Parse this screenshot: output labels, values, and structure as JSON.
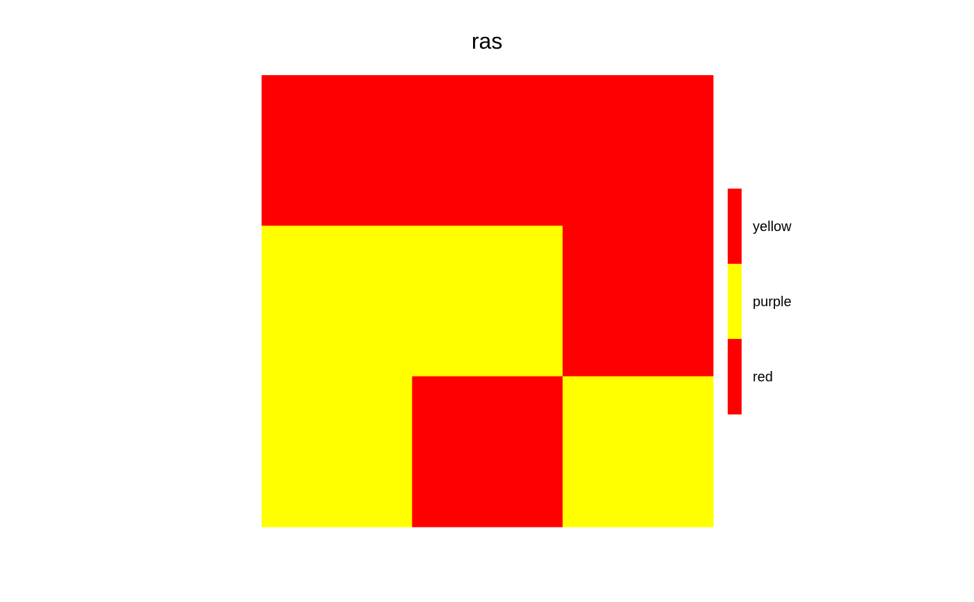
{
  "chart_data": {
    "type": "heatmap",
    "title": "ras",
    "grid": false,
    "legend_placement": "right",
    "rows": 3,
    "cols": 3,
    "cells": [
      [
        3,
        3,
        3
      ],
      [
        2,
        2,
        3
      ],
      [
        2,
        3,
        2
      ]
    ],
    "legend": [
      {
        "value": 3,
        "label": "yellow",
        "color": "#ff0000"
      },
      {
        "value": 2,
        "label": "purple",
        "color": "#ffff00"
      },
      {
        "value": 1,
        "label": "red",
        "color": "#ff0000"
      }
    ]
  }
}
